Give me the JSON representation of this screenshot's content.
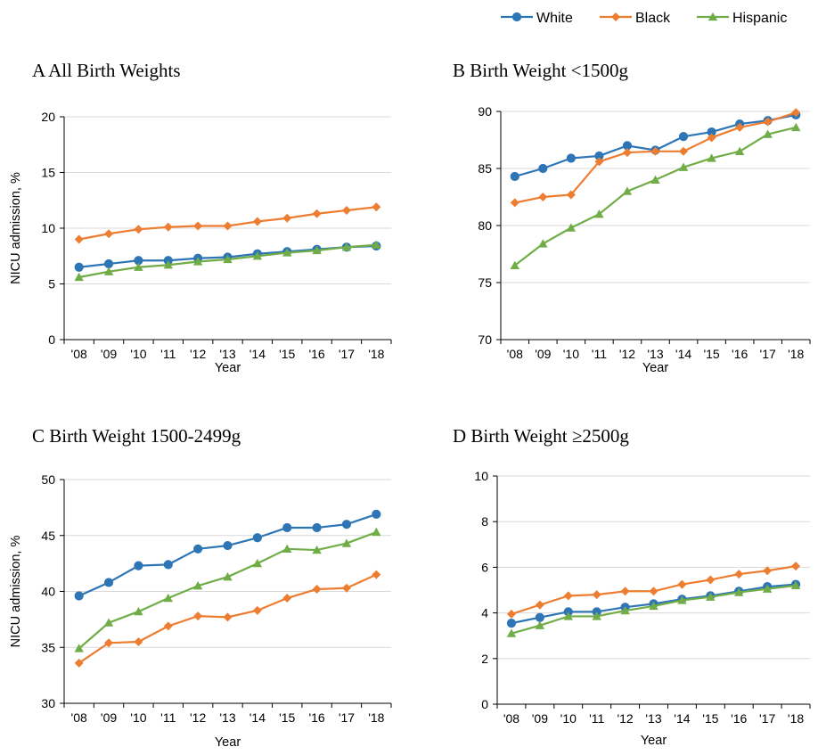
{
  "colors": {
    "series": [
      "#2E75B6",
      "#ED7D31",
      "#70AD47"
    ],
    "grid": "#D9D9D9",
    "axis": "#000000"
  },
  "legend": {
    "items": [
      {
        "name": "White",
        "marker": "circle"
      },
      {
        "name": "Black",
        "marker": "diamond"
      },
      {
        "name": "Hispanic",
        "marker": "triangle"
      }
    ]
  },
  "chart_data": [
    {
      "type": "line",
      "panel": "A",
      "title": "A  All Birth Weights",
      "xlabel": "Year",
      "ylabel": "NICU admission, %",
      "categories": [
        "'08",
        "'09",
        "'10",
        "'11",
        "'12",
        "'13",
        "'14",
        "'15",
        "'16",
        "'17",
        "'18"
      ],
      "ylim": [
        0,
        20
      ],
      "yticks": [
        0,
        5,
        10,
        15,
        20
      ],
      "grid": true,
      "series": [
        {
          "name": "White",
          "values": [
            6.5,
            6.8,
            7.1,
            7.1,
            7.3,
            7.4,
            7.7,
            7.9,
            8.1,
            8.3,
            8.4
          ]
        },
        {
          "name": "Black",
          "values": [
            9.0,
            9.5,
            9.9,
            10.1,
            10.2,
            10.2,
            10.6,
            10.9,
            11.3,
            11.6,
            11.9
          ]
        },
        {
          "name": "Hispanic",
          "values": [
            5.6,
            6.1,
            6.5,
            6.7,
            7.0,
            7.2,
            7.5,
            7.8,
            8.0,
            8.3,
            8.5
          ]
        }
      ]
    },
    {
      "type": "line",
      "panel": "B",
      "title": "B Birth Weight <1500g",
      "xlabel": "Year",
      "ylabel": "",
      "categories": [
        "'08",
        "'09",
        "'10",
        "'11",
        "'12",
        "'13",
        "'14",
        "'15",
        "'16",
        "'17",
        "'18"
      ],
      "ylim": [
        70,
        90
      ],
      "yticks": [
        70,
        75,
        80,
        85,
        90
      ],
      "grid": true,
      "series": [
        {
          "name": "White",
          "values": [
            84.3,
            85.0,
            85.9,
            86.1,
            87.0,
            86.6,
            87.8,
            88.2,
            88.9,
            89.2,
            89.7
          ]
        },
        {
          "name": "Black",
          "values": [
            82.0,
            82.5,
            82.7,
            85.6,
            86.4,
            86.5,
            86.5,
            87.7,
            88.6,
            89.1,
            89.9
          ]
        },
        {
          "name": "Hispanic",
          "values": [
            76.5,
            78.4,
            79.8,
            81.0,
            83.0,
            84.0,
            85.1,
            85.9,
            86.5,
            88.0,
            88.6
          ]
        }
      ]
    },
    {
      "type": "line",
      "panel": "C",
      "title": "C  Birth Weight 1500-2499g",
      "xlabel": "Year",
      "ylabel": "NICU admission, %",
      "categories": [
        "'08",
        "'09",
        "'10",
        "'11",
        "'12",
        "'13",
        "'14",
        "'15",
        "'16",
        "'17",
        "'18"
      ],
      "ylim": [
        30,
        50
      ],
      "yticks": [
        30,
        35,
        40,
        45,
        50
      ],
      "grid": true,
      "series": [
        {
          "name": "White",
          "values": [
            39.6,
            40.8,
            42.3,
            42.4,
            43.8,
            44.1,
            44.8,
            45.7,
            45.7,
            46.0,
            46.9
          ]
        },
        {
          "name": "Black",
          "values": [
            33.6,
            35.4,
            35.5,
            36.9,
            37.8,
            37.7,
            38.3,
            39.4,
            40.2,
            40.3,
            41.5
          ]
        },
        {
          "name": "Hispanic",
          "values": [
            34.9,
            37.2,
            38.2,
            39.4,
            40.5,
            41.3,
            42.5,
            43.8,
            43.7,
            44.3,
            45.3
          ]
        }
      ]
    },
    {
      "type": "line",
      "panel": "D",
      "title": "D  Birth Weight ≥2500g",
      "xlabel": "Year",
      "ylabel": "",
      "categories": [
        "'08",
        "'09",
        "'10",
        "'11",
        "'12",
        "'13",
        "'14",
        "'15",
        "'16",
        "'17",
        "'18"
      ],
      "ylim": [
        0,
        10
      ],
      "yticks": [
        0,
        2,
        4,
        6,
        8,
        10
      ],
      "grid": true,
      "series": [
        {
          "name": "White",
          "values": [
            3.55,
            3.8,
            4.05,
            4.05,
            4.25,
            4.4,
            4.6,
            4.75,
            4.95,
            5.15,
            5.25
          ]
        },
        {
          "name": "Black",
          "values": [
            3.95,
            4.35,
            4.75,
            4.8,
            4.95,
            4.95,
            5.25,
            5.45,
            5.7,
            5.85,
            6.05
          ]
        },
        {
          "name": "Hispanic",
          "values": [
            3.1,
            3.45,
            3.85,
            3.85,
            4.1,
            4.3,
            4.55,
            4.7,
            4.9,
            5.05,
            5.2
          ]
        }
      ]
    }
  ]
}
